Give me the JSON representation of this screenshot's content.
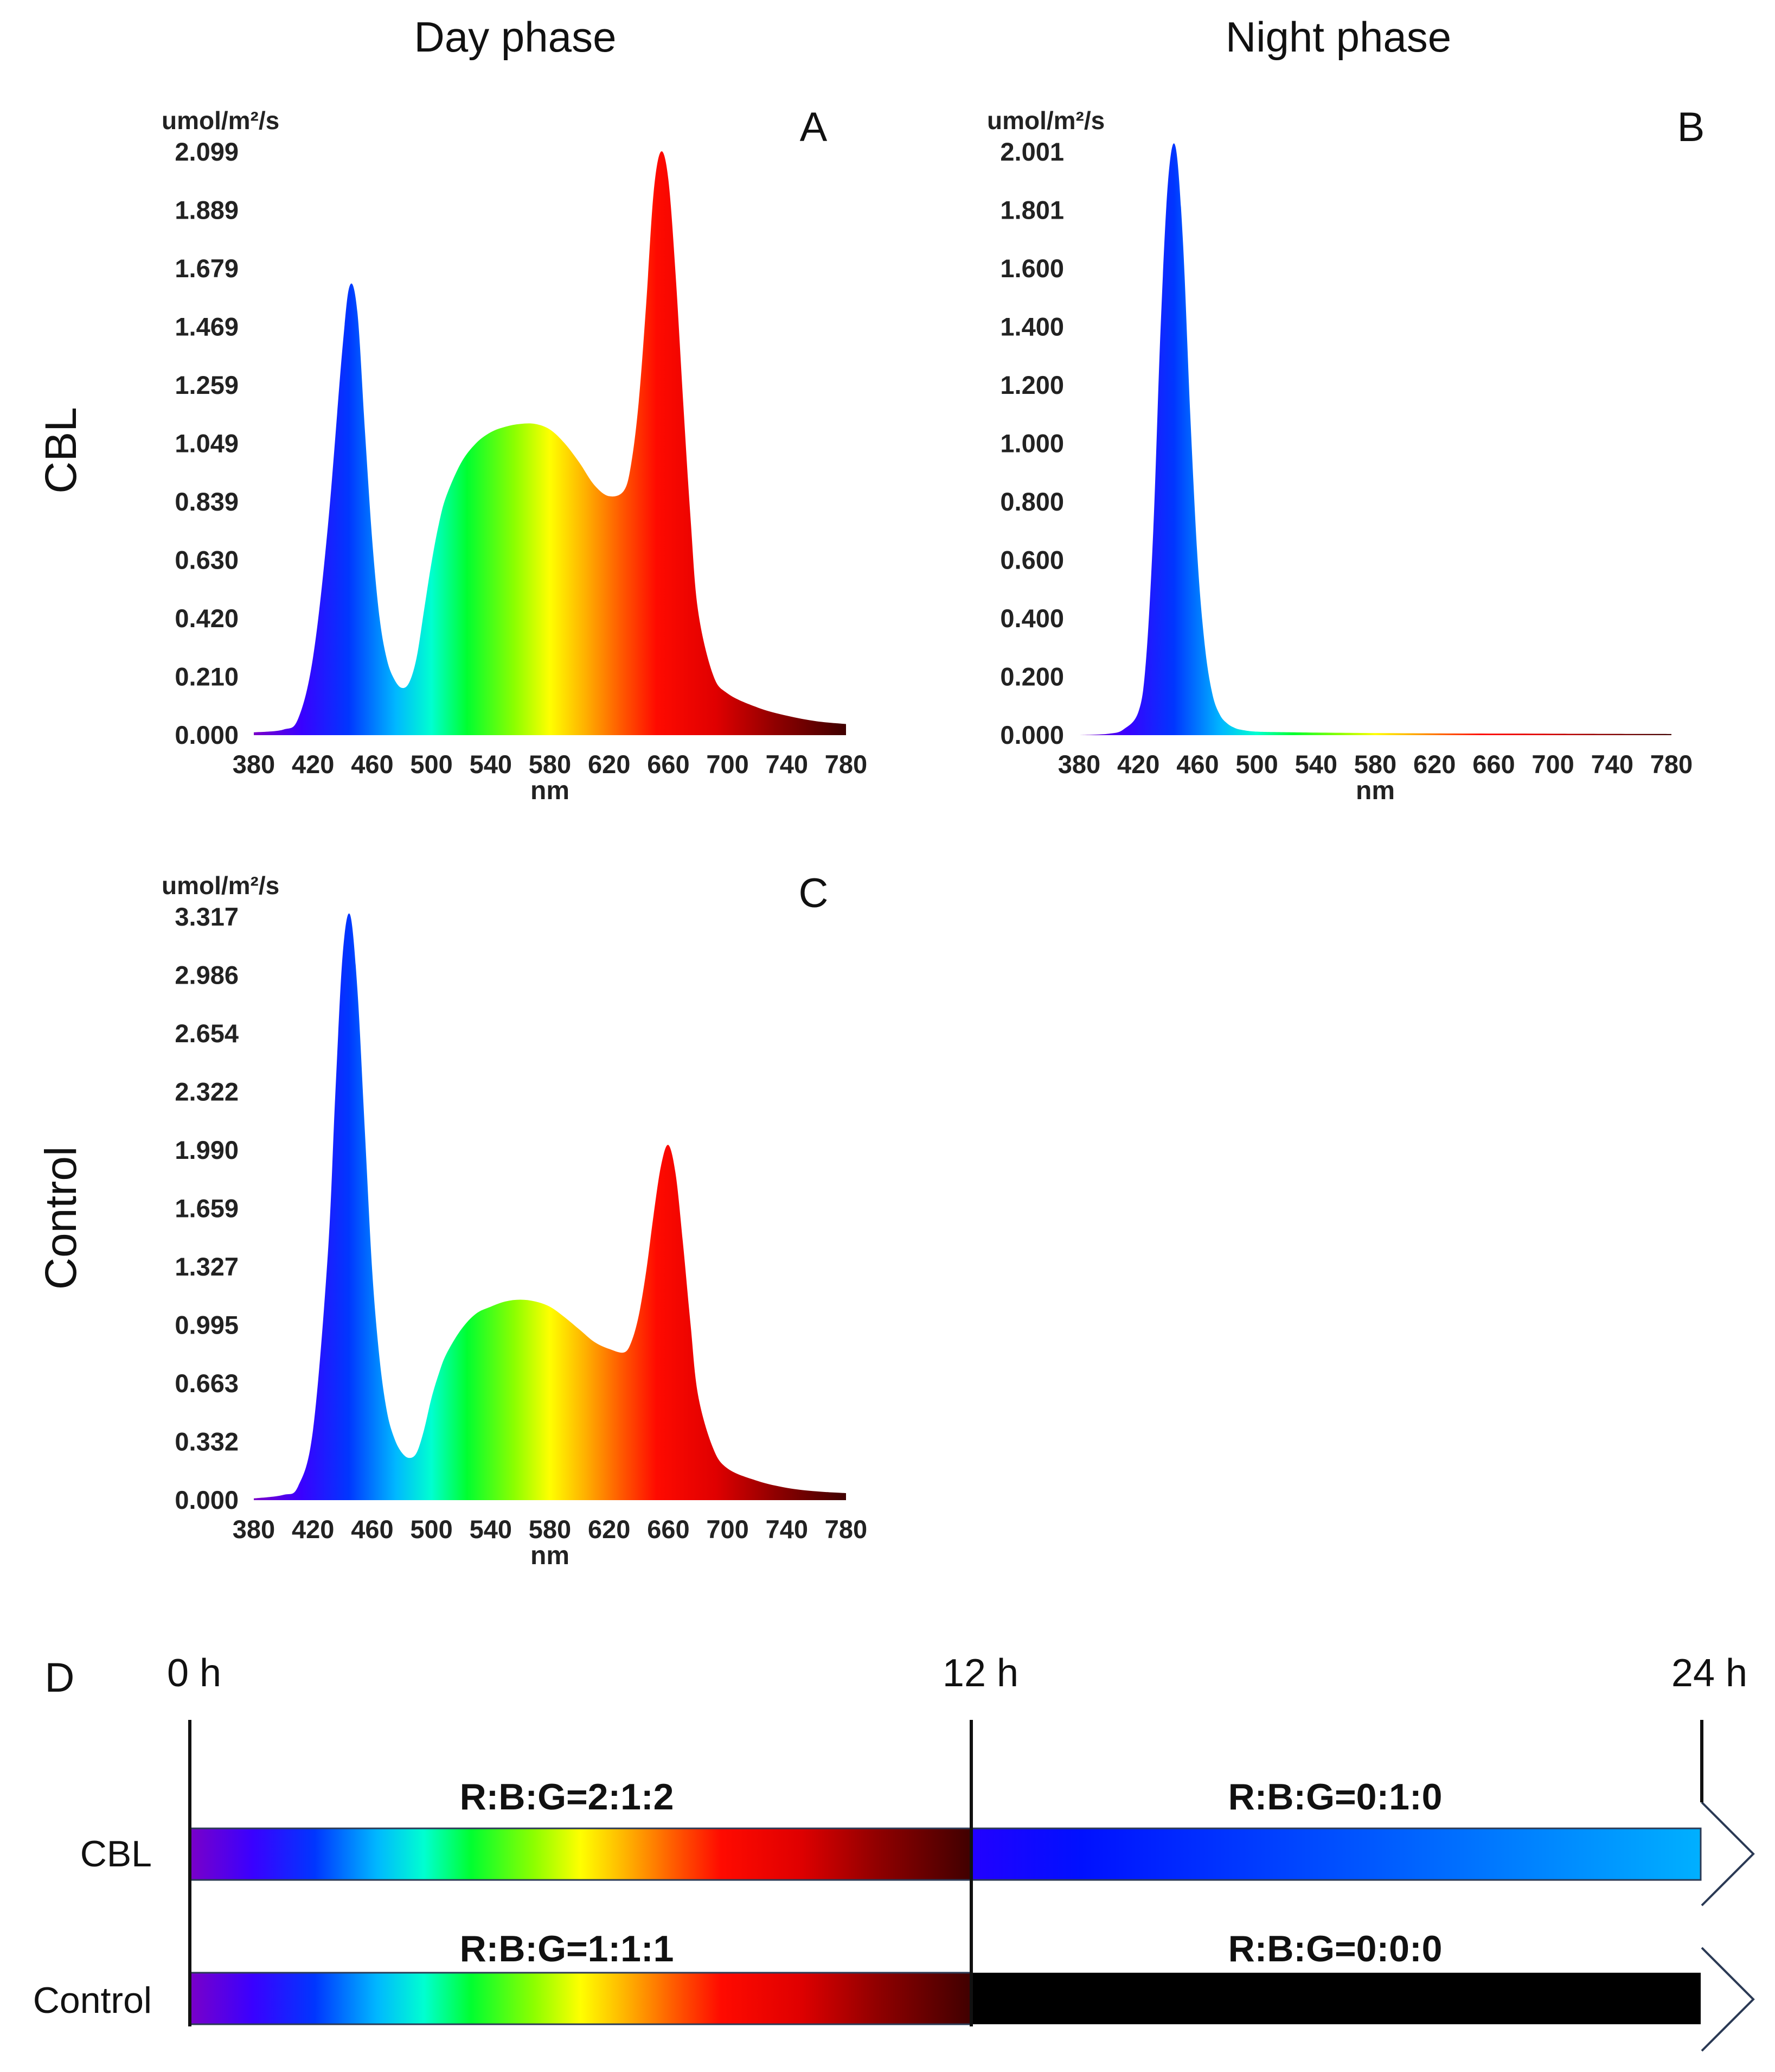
{
  "column_headers": {
    "day": "Day phase",
    "night": "Night phase"
  },
  "row_headers": {
    "cbl": "CBL",
    "control": "Control"
  },
  "chart_data": [
    {
      "id": "A",
      "type": "area",
      "panel_label": "A",
      "ylabel": "umol/m²/s",
      "xlabel": "nm",
      "x_ticks": [
        "380",
        "420",
        "460",
        "500",
        "540",
        "580",
        "620",
        "660",
        "700",
        "740",
        "780"
      ],
      "y_ticks": [
        "0.000",
        "0.210",
        "0.420",
        "0.630",
        "0.839",
        "1.049",
        "1.259",
        "1.469",
        "1.679",
        "1.889",
        "2.099"
      ],
      "xlim": [
        380,
        780
      ],
      "ylim": [
        0,
        2.099
      ],
      "x": [
        380,
        400,
        410,
        420,
        430,
        440,
        445,
        450,
        455,
        460,
        465,
        470,
        475,
        480,
        485,
        490,
        495,
        500,
        505,
        510,
        520,
        530,
        540,
        550,
        560,
        570,
        580,
        590,
        600,
        610,
        620,
        630,
        635,
        640,
        645,
        650,
        655,
        660,
        665,
        670,
        675,
        680,
        690,
        700,
        720,
        740,
        760,
        780
      ],
      "y": [
        0.01,
        0.02,
        0.06,
        0.28,
        0.75,
        1.4,
        1.62,
        1.52,
        1.1,
        0.7,
        0.42,
        0.27,
        0.2,
        0.17,
        0.19,
        0.28,
        0.45,
        0.62,
        0.76,
        0.86,
        0.98,
        1.05,
        1.09,
        1.11,
        1.12,
        1.12,
        1.1,
        1.05,
        0.98,
        0.9,
        0.86,
        0.88,
        0.98,
        1.2,
        1.55,
        1.95,
        2.1,
        2.0,
        1.65,
        1.2,
        0.78,
        0.45,
        0.22,
        0.15,
        0.1,
        0.07,
        0.05,
        0.04
      ]
    },
    {
      "id": "B",
      "type": "area",
      "panel_label": "B",
      "ylabel": "umol/m²/s",
      "xlabel": "nm",
      "x_ticks": [
        "380",
        "420",
        "460",
        "500",
        "540",
        "580",
        "620",
        "660",
        "700",
        "740",
        "780"
      ],
      "y_ticks": [
        "0.000",
        "0.200",
        "0.400",
        "0.600",
        "0.800",
        "1.000",
        "1.200",
        "1.400",
        "1.600",
        "1.801",
        "2.001"
      ],
      "xlim": [
        380,
        780
      ],
      "ylim": [
        0,
        2.001
      ],
      "x": [
        380,
        400,
        410,
        420,
        425,
        430,
        435,
        440,
        445,
        450,
        455,
        460,
        465,
        470,
        475,
        480,
        485,
        490,
        500,
        520,
        560,
        620,
        700,
        780
      ],
      "y": [
        0.0,
        0.005,
        0.02,
        0.08,
        0.25,
        0.7,
        1.4,
        1.9,
        2.02,
        1.7,
        1.1,
        0.6,
        0.3,
        0.14,
        0.07,
        0.04,
        0.025,
        0.018,
        0.012,
        0.01,
        0.008,
        0.006,
        0.005,
        0.004
      ]
    },
    {
      "id": "C",
      "type": "area",
      "panel_label": "C",
      "ylabel": "umol/m²/s",
      "xlabel": "nm",
      "x_ticks": [
        "380",
        "420",
        "460",
        "500",
        "540",
        "580",
        "620",
        "660",
        "700",
        "740",
        "780"
      ],
      "y_ticks": [
        "0.000",
        "0.332",
        "0.663",
        "0.995",
        "1.327",
        "1.659",
        "1.990",
        "2.322",
        "2.654",
        "2.986",
        "3.317"
      ],
      "xlim": [
        380,
        780
      ],
      "ylim": [
        0,
        3.317
      ],
      "x": [
        380,
        400,
        410,
        420,
        430,
        435,
        440,
        445,
        450,
        455,
        460,
        465,
        470,
        475,
        480,
        485,
        490,
        495,
        500,
        505,
        510,
        520,
        530,
        540,
        550,
        560,
        570,
        580,
        590,
        600,
        610,
        620,
        630,
        635,
        640,
        645,
        650,
        655,
        660,
        665,
        670,
        675,
        680,
        690,
        700,
        720,
        740,
        760,
        780
      ],
      "y": [
        0.01,
        0.03,
        0.08,
        0.4,
        1.4,
        2.3,
        3.1,
        3.33,
        2.9,
        2.1,
        1.3,
        0.8,
        0.5,
        0.35,
        0.27,
        0.24,
        0.27,
        0.4,
        0.58,
        0.72,
        0.83,
        0.97,
        1.06,
        1.1,
        1.13,
        1.14,
        1.13,
        1.1,
        1.04,
        0.97,
        0.9,
        0.86,
        0.84,
        0.9,
        1.05,
        1.3,
        1.62,
        1.9,
        2.02,
        1.85,
        1.45,
        1.0,
        0.6,
        0.3,
        0.18,
        0.11,
        0.07,
        0.05,
        0.04
      ]
    }
  ],
  "timeline": {
    "panel_label": "D",
    "time_labels": {
      "start": "0 h",
      "mid": "12 h",
      "end": "24 h"
    },
    "rows": [
      {
        "label": "CBL",
        "day_ratio": "R:B:G=2:1:2",
        "night_ratio": "R:B:G=0:1:0",
        "night_color": "blue"
      },
      {
        "label": "Control",
        "day_ratio": "R:B:G=1:1:1",
        "night_ratio": "R:B:G=0:0:0",
        "night_color": "#000000"
      }
    ]
  }
}
